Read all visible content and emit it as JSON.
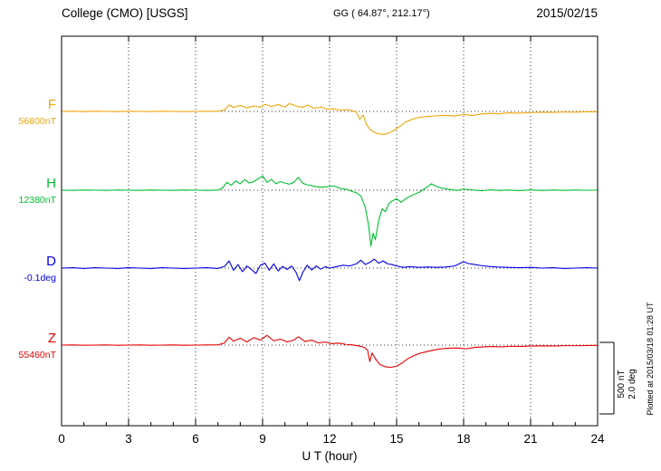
{
  "header": {
    "station_title": "College (CMO)  [USGS]",
    "gg_coordinates": "GG ( 64.87°, 212.17°)",
    "date": "2015/02/15"
  },
  "axis": {
    "xlabel": "U T (hour)"
  },
  "scalebar": {
    "nt_label": "500 nT",
    "deg_label": "2.0 deg"
  },
  "plotted_at": "Plotted at 2015/03/18 01:28 UT",
  "chart_data": {
    "type": "line",
    "title": "College (CMO) [USGS] magnetogram, 2015/02/15",
    "xlabel": "U T (hour)",
    "x_range": [
      0,
      24
    ],
    "x_ticks": [
      0,
      3,
      6,
      9,
      12,
      15,
      18,
      21,
      24
    ],
    "grid": "vertical dotted at 3-hour intervals, dotted horizontal baseline per trace",
    "legend_position": "left margin, one colored label per trace",
    "scale": {
      "nT_span": 500,
      "deg_span": 2.0
    },
    "series": [
      {
        "name": "F",
        "label": "F",
        "unit": "nT",
        "baseline_value": 56800,
        "baseline_label": "56800nT",
        "color": "#efa50a",
        "points": [
          [
            0,
            0
          ],
          [
            0.5,
            1
          ],
          [
            1,
            -1
          ],
          [
            1.5,
            1
          ],
          [
            2,
            0
          ],
          [
            2.5,
            -1
          ],
          [
            3,
            1
          ],
          [
            3.5,
            0
          ],
          [
            4,
            -1
          ],
          [
            4.5,
            1
          ],
          [
            5,
            0
          ],
          [
            5.5,
            -1
          ],
          [
            6,
            0
          ],
          [
            6.5,
            1
          ],
          [
            7,
            2
          ],
          [
            7.3,
            10
          ],
          [
            7.5,
            45
          ],
          [
            7.7,
            28
          ],
          [
            8,
            42
          ],
          [
            8.3,
            25
          ],
          [
            8.6,
            38
          ],
          [
            8.9,
            30
          ],
          [
            9.1,
            50
          ],
          [
            9.4,
            35
          ],
          [
            9.7,
            48
          ],
          [
            10,
            30
          ],
          [
            10.2,
            55
          ],
          [
            10.5,
            38
          ],
          [
            10.8,
            28
          ],
          [
            11,
            45
          ],
          [
            11.3,
            22
          ],
          [
            11.6,
            30
          ],
          [
            11.9,
            15
          ],
          [
            12.2,
            18
          ],
          [
            12.5,
            8
          ],
          [
            12.8,
            12
          ],
          [
            13,
            5
          ],
          [
            13.2,
            -5
          ],
          [
            13.35,
            -55
          ],
          [
            13.5,
            -25
          ],
          [
            13.65,
            -90
          ],
          [
            13.8,
            -125
          ],
          [
            14,
            -145
          ],
          [
            14.2,
            -158
          ],
          [
            14.5,
            -160
          ],
          [
            14.8,
            -140
          ],
          [
            15.1,
            -110
          ],
          [
            15.4,
            -75
          ],
          [
            15.7,
            -55
          ],
          [
            16,
            -42
          ],
          [
            16.4,
            -35
          ],
          [
            16.8,
            -30
          ],
          [
            17.2,
            -28
          ],
          [
            17.6,
            -32
          ],
          [
            18,
            -22
          ],
          [
            18.4,
            -28
          ],
          [
            18.8,
            -18
          ],
          [
            19.2,
            -14
          ],
          [
            19.6,
            -16
          ],
          [
            20,
            -10
          ],
          [
            20.5,
            -12
          ],
          [
            21,
            -8
          ],
          [
            21.5,
            -6
          ],
          [
            22,
            -7
          ],
          [
            22.5,
            -4
          ],
          [
            23,
            -5
          ],
          [
            23.5,
            -3
          ],
          [
            24,
            -3
          ]
        ]
      },
      {
        "name": "H",
        "label": "H",
        "unit": "nT",
        "baseline_value": 12380,
        "baseline_label": "12380nT",
        "color": "#00bf2f",
        "points": [
          [
            0,
            0
          ],
          [
            0.5,
            -1
          ],
          [
            1,
            1
          ],
          [
            1.5,
            0
          ],
          [
            2,
            -1
          ],
          [
            2.5,
            1
          ],
          [
            3,
            0
          ],
          [
            3.5,
            -1
          ],
          [
            4,
            1
          ],
          [
            4.5,
            0
          ],
          [
            5,
            -1
          ],
          [
            5.5,
            1
          ],
          [
            6,
            0
          ],
          [
            6.5,
            -1
          ],
          [
            7,
            1
          ],
          [
            7.2,
            15
          ],
          [
            7.4,
            55
          ],
          [
            7.6,
            35
          ],
          [
            7.8,
            65
          ],
          [
            8,
            45
          ],
          [
            8.2,
            75
          ],
          [
            8.4,
            50
          ],
          [
            8.6,
            60
          ],
          [
            8.8,
            80
          ],
          [
            9,
            100
          ],
          [
            9.2,
            55
          ],
          [
            9.4,
            75
          ],
          [
            9.6,
            45
          ],
          [
            9.8,
            60
          ],
          [
            10,
            50
          ],
          [
            10.2,
            42
          ],
          [
            10.4,
            55
          ],
          [
            10.6,
            90
          ],
          [
            10.8,
            48
          ],
          [
            11,
            38
          ],
          [
            11.3,
            28
          ],
          [
            11.6,
            20
          ],
          [
            11.9,
            25
          ],
          [
            12.2,
            30
          ],
          [
            12.5,
            12
          ],
          [
            12.8,
            5
          ],
          [
            13,
            -8
          ],
          [
            13.2,
            -18
          ],
          [
            13.4,
            -40
          ],
          [
            13.6,
            -120
          ],
          [
            13.75,
            -250
          ],
          [
            13.85,
            -390
          ],
          [
            13.95,
            -300
          ],
          [
            14.05,
            -345
          ],
          [
            14.2,
            -210
          ],
          [
            14.35,
            -130
          ],
          [
            14.5,
            -150
          ],
          [
            14.65,
            -95
          ],
          [
            14.8,
            -75
          ],
          [
            15,
            -60
          ],
          [
            15.2,
            -85
          ],
          [
            15.45,
            -55
          ],
          [
            15.7,
            -35
          ],
          [
            16,
            -15
          ],
          [
            16.3,
            15
          ],
          [
            16.55,
            45
          ],
          [
            16.8,
            25
          ],
          [
            17.1,
            12
          ],
          [
            17.4,
            5
          ],
          [
            17.7,
            -2
          ],
          [
            18,
            8
          ],
          [
            18.4,
            2
          ],
          [
            18.8,
            -4
          ],
          [
            19.2,
            3
          ],
          [
            19.6,
            -2
          ],
          [
            20,
            1
          ],
          [
            20.5,
            -3
          ],
          [
            21,
            2
          ],
          [
            21.5,
            -2
          ],
          [
            22,
            1
          ],
          [
            22.5,
            -1
          ],
          [
            23,
            1
          ],
          [
            23.5,
            0
          ],
          [
            24,
            0
          ]
        ]
      },
      {
        "name": "D",
        "label": "D",
        "unit": "deg",
        "baseline_value": -0.1,
        "baseline_label": "-0.1deg",
        "color": "#0000e6",
        "points": [
          [
            0,
            0
          ],
          [
            0.5,
            0.01
          ],
          [
            1,
            -0.01
          ],
          [
            1.5,
            0.01
          ],
          [
            2,
            0
          ],
          [
            2.5,
            -0.01
          ],
          [
            3,
            0.01
          ],
          [
            3.5,
            0
          ],
          [
            4,
            -0.01
          ],
          [
            4.5,
            0.01
          ],
          [
            5,
            0
          ],
          [
            5.5,
            -0.01
          ],
          [
            6,
            0
          ],
          [
            6.5,
            0.01
          ],
          [
            7,
            -0.01
          ],
          [
            7.3,
            0.05
          ],
          [
            7.5,
            0.2
          ],
          [
            7.7,
            -0.06
          ],
          [
            7.9,
            0.1
          ],
          [
            8.1,
            -0.1
          ],
          [
            8.3,
            0.06
          ],
          [
            8.5,
            -0.04
          ],
          [
            8.7,
            -0.15
          ],
          [
            8.9,
            0.08
          ],
          [
            9.1,
            0.14
          ],
          [
            9.3,
            -0.06
          ],
          [
            9.5,
            0.12
          ],
          [
            9.7,
            -0.08
          ],
          [
            9.9,
            0.05
          ],
          [
            10.1,
            -0.04
          ],
          [
            10.3,
            0.06
          ],
          [
            10.5,
            -0.12
          ],
          [
            10.65,
            -0.35
          ],
          [
            10.8,
            -0.12
          ],
          [
            11,
            0.08
          ],
          [
            11.2,
            -0.05
          ],
          [
            11.4,
            0.06
          ],
          [
            11.6,
            -0.03
          ],
          [
            11.8,
            0.04
          ],
          [
            12,
            0
          ],
          [
            12.3,
            0.04
          ],
          [
            12.6,
            0.08
          ],
          [
            12.9,
            0.06
          ],
          [
            13.2,
            0.12
          ],
          [
            13.4,
            0.22
          ],
          [
            13.6,
            0.1
          ],
          [
            13.8,
            0.16
          ],
          [
            14,
            0.25
          ],
          [
            14.2,
            0.14
          ],
          [
            14.4,
            0.2
          ],
          [
            14.6,
            0.12
          ],
          [
            14.8,
            0.1
          ],
          [
            15,
            0.06
          ],
          [
            15.3,
            0.02
          ],
          [
            15.6,
            0.04
          ],
          [
            16,
            0.02
          ],
          [
            16.4,
            0.03
          ],
          [
            16.8,
            0.02
          ],
          [
            17.2,
            0.03
          ],
          [
            17.6,
            0.06
          ],
          [
            18,
            0.18
          ],
          [
            18.2,
            0.13
          ],
          [
            18.5,
            0.1
          ],
          [
            18.8,
            0.07
          ],
          [
            19.1,
            0.05
          ],
          [
            19.5,
            0.03
          ],
          [
            20,
            0.02
          ],
          [
            20.5,
            0.01
          ],
          [
            21,
            0.02
          ],
          [
            21.5,
            0
          ],
          [
            22,
            0.01
          ],
          [
            22.5,
            -0.01
          ],
          [
            23,
            0
          ],
          [
            23.5,
            0.01
          ],
          [
            24,
            0
          ]
        ]
      },
      {
        "name": "Z",
        "label": "Z",
        "unit": "nT",
        "baseline_value": 55460,
        "baseline_label": "55460nT",
        "color": "#e60000",
        "points": [
          [
            0,
            0
          ],
          [
            0.5,
            1
          ],
          [
            1,
            -1
          ],
          [
            1.5,
            0
          ],
          [
            2,
            1
          ],
          [
            2.5,
            -1
          ],
          [
            3,
            0
          ],
          [
            3.5,
            1
          ],
          [
            4,
            -1
          ],
          [
            4.5,
            0
          ],
          [
            5,
            1
          ],
          [
            5.5,
            -1
          ],
          [
            6,
            0
          ],
          [
            6.5,
            1
          ],
          [
            7,
            2
          ],
          [
            7.3,
            15
          ],
          [
            7.5,
            55
          ],
          [
            7.7,
            28
          ],
          [
            8,
            48
          ],
          [
            8.3,
            22
          ],
          [
            8.6,
            52
          ],
          [
            8.9,
            35
          ],
          [
            9.2,
            68
          ],
          [
            9.5,
            30
          ],
          [
            9.8,
            42
          ],
          [
            10.1,
            22
          ],
          [
            10.4,
            35
          ],
          [
            10.6,
            58
          ],
          [
            10.9,
            25
          ],
          [
            11.2,
            35
          ],
          [
            11.5,
            15
          ],
          [
            11.8,
            22
          ],
          [
            12.1,
            10
          ],
          [
            12.4,
            14
          ],
          [
            12.7,
            6
          ],
          [
            13,
            2
          ],
          [
            13.3,
            -6
          ],
          [
            13.55,
            -15
          ],
          [
            13.7,
            -35
          ],
          [
            13.8,
            -115
          ],
          [
            13.9,
            -55
          ],
          [
            14.05,
            -95
          ],
          [
            14.25,
            -135
          ],
          [
            14.5,
            -152
          ],
          [
            14.75,
            -155
          ],
          [
            15,
            -148
          ],
          [
            15.25,
            -125
          ],
          [
            15.5,
            -95
          ],
          [
            15.8,
            -72
          ],
          [
            16.1,
            -55
          ],
          [
            16.5,
            -40
          ],
          [
            16.9,
            -28
          ],
          [
            17.3,
            -22
          ],
          [
            17.7,
            -20
          ],
          [
            18.1,
            -26
          ],
          [
            18.5,
            -16
          ],
          [
            18.9,
            -12
          ],
          [
            19.3,
            -10
          ],
          [
            19.7,
            -12
          ],
          [
            20.1,
            -8
          ],
          [
            20.6,
            -9
          ],
          [
            21.1,
            -6
          ],
          [
            21.6,
            -5
          ],
          [
            22.1,
            -6
          ],
          [
            22.6,
            -4
          ],
          [
            23.1,
            -4
          ],
          [
            23.6,
            -3
          ],
          [
            24,
            -2
          ]
        ]
      }
    ]
  }
}
